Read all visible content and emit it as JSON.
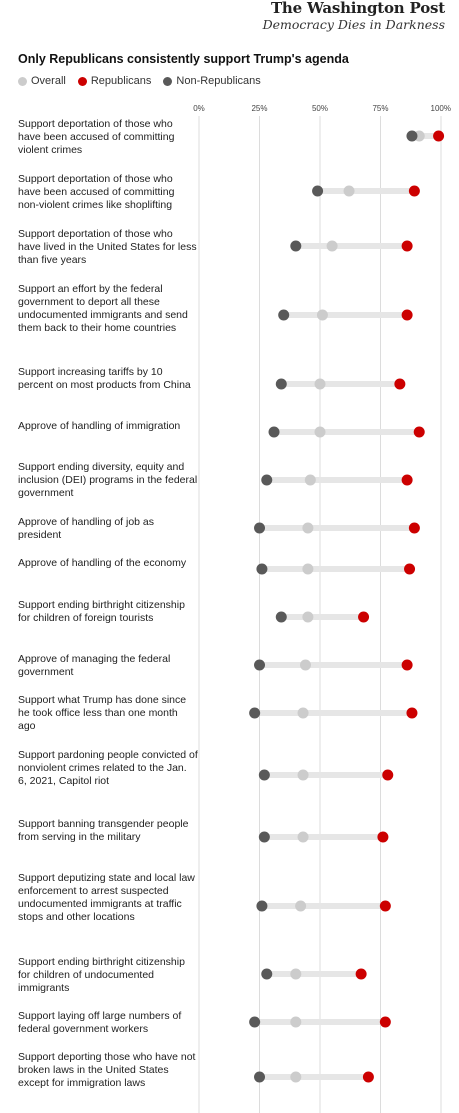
{
  "masthead": {
    "paper": "The Washington Post",
    "motto": "Democracy Dies in Darkness"
  },
  "colors": {
    "overall": "#cccccc",
    "republicans": "#cc0000",
    "non_republicans": "#595959",
    "track": "#e6e6e6",
    "grid": "#dcdcdc"
  },
  "chart_data": {
    "type": "dot-plot",
    "title": "Only Republicans consistently support Trump's agenda",
    "x_ticks": [
      "0%",
      "25%",
      "50%",
      "75%",
      "100%"
    ],
    "xlim": [
      0,
      100
    ],
    "grid": true,
    "legend_position": "top-left",
    "series": [
      {
        "name": "Overall",
        "key": "overall"
      },
      {
        "name": "Republicans",
        "key": "republicans"
      },
      {
        "name": "Non-Republicans",
        "key": "non_republicans"
      }
    ],
    "rows": [
      {
        "label": "Support deportation of those who have been accused of committing violent crimes",
        "overall": 91,
        "republicans": 99,
        "non_republicans": 88
      },
      {
        "label": "Support deportation of those who have been accused of committing non-violent crimes like shoplifting",
        "overall": 62,
        "republicans": 89,
        "non_republicans": 49
      },
      {
        "label": "Support deportation of those who have lived in the United States for less than five years",
        "overall": 55,
        "republicans": 86,
        "non_republicans": 40
      },
      {
        "label": "Support an effort by the federal government to deport all these undocumented immigrants and send them back to their home countries",
        "overall": 51,
        "republicans": 86,
        "non_republicans": 35
      },
      {
        "label": "Support increasing tariffs by 10 percent on most products from China",
        "overall": 50,
        "republicans": 83,
        "non_republicans": 34
      },
      {
        "label": "Approve of handling of immigration",
        "overall": 50,
        "republicans": 91,
        "non_republicans": 31
      },
      {
        "label": "Support ending diversity, equity and inclusion (DEI) programs in the federal government",
        "overall": 46,
        "republicans": 86,
        "non_republicans": 28
      },
      {
        "label": "Approve of handling of job as president",
        "overall": 45,
        "republicans": 89,
        "non_republicans": 25
      },
      {
        "label": "Approve of handling of the economy",
        "overall": 45,
        "republicans": 87,
        "non_republicans": 26
      },
      {
        "label": "Support ending birthright citizenship for children of foreign tourists",
        "overall": 45,
        "republicans": 68,
        "non_republicans": 34
      },
      {
        "label": "Approve of managing the federal government",
        "overall": 44,
        "republicans": 86,
        "non_republicans": 25
      },
      {
        "label": "Support what Trump has done since he took office less than one month ago",
        "overall": 43,
        "republicans": 88,
        "non_republicans": 23
      },
      {
        "label": "Support pardoning people convicted of nonviolent crimes related to the Jan. 6, 2021, Capitol riot",
        "overall": 43,
        "republicans": 78,
        "non_republicans": 27
      },
      {
        "label": "Support banning transgender people from serving in the military",
        "overall": 43,
        "republicans": 76,
        "non_republicans": 27
      },
      {
        "label": "Support deputizing state and local law enforcement to arrest suspected undocumented immigrants at traffic stops and other locations",
        "overall": 42,
        "republicans": 77,
        "non_republicans": 26
      },
      {
        "label": "Support ending birthright citizenship for children of undocumented immigrants",
        "overall": 40,
        "republicans": 67,
        "non_republicans": 28
      },
      {
        "label": "Support laying off large numbers of federal government workers",
        "overall": 40,
        "republicans": 77,
        "non_republicans": 23
      },
      {
        "label": "Support deporting those who have not broken laws in the United States except for immigration laws",
        "overall": 40,
        "republicans": 70,
        "non_republicans": 25
      }
    ]
  }
}
